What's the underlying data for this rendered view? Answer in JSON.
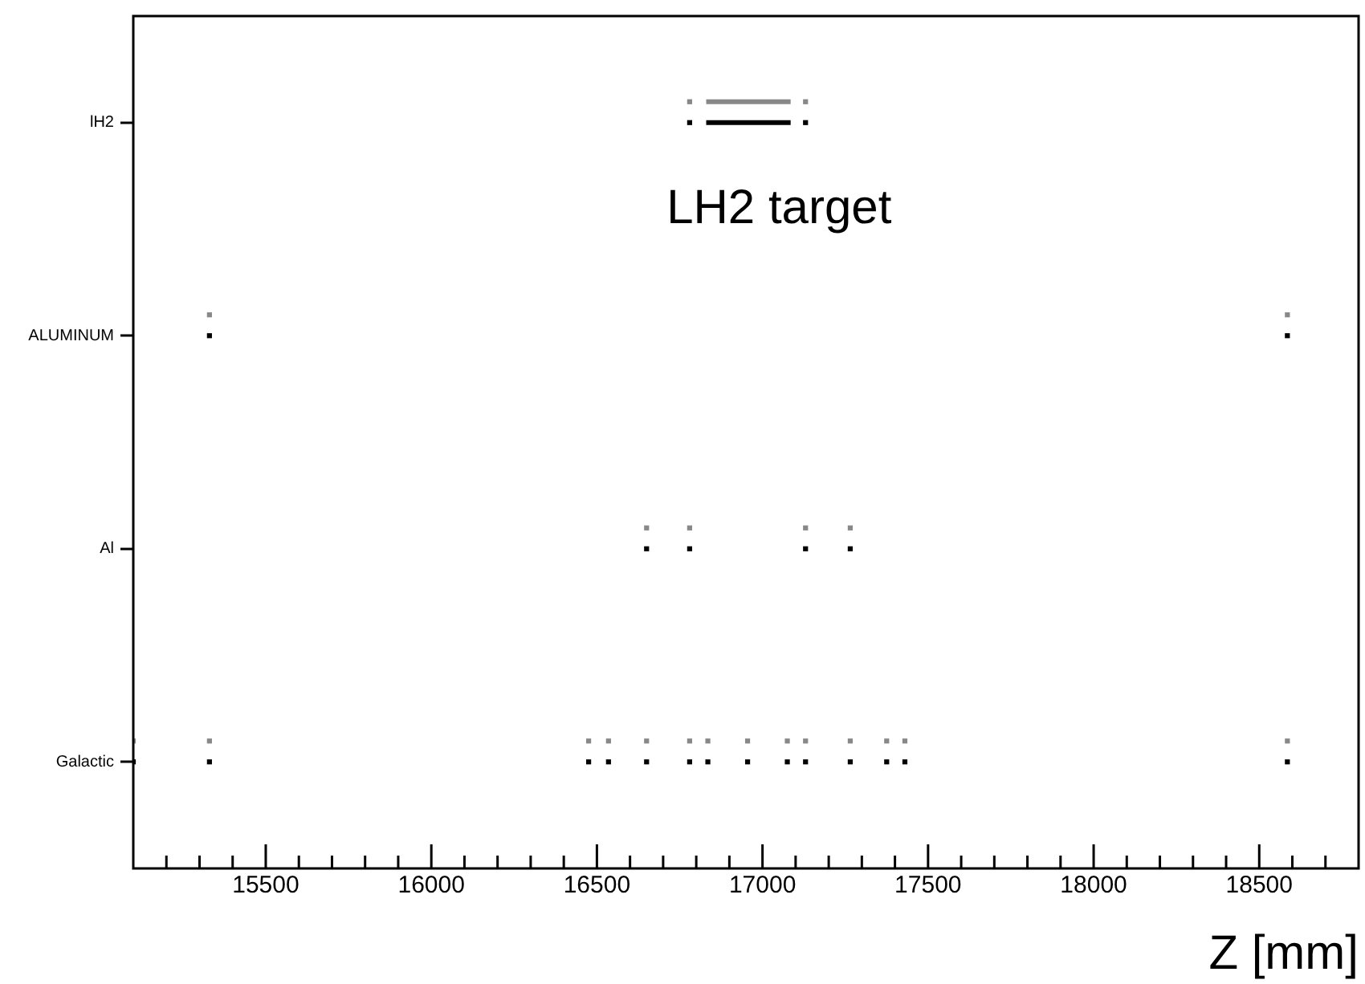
{
  "chart_data": {
    "type": "scatter",
    "xlabel": "Z [mm]",
    "orientation": "horizontal",
    "annotations": [
      "LH2 target"
    ],
    "categories": [
      "lH2",
      "ALUMINUM",
      "Al",
      "Galactic"
    ],
    "xlim": [
      15100,
      18800
    ],
    "xticks": [
      {
        "value": 15200,
        "label": null
      },
      {
        "value": 15300,
        "label": null
      },
      {
        "value": 15400,
        "label": null
      },
      15500,
      {
        "value": 15600,
        "label": null
      },
      {
        "value": 15700,
        "label": null
      },
      {
        "value": 15800,
        "label": null
      },
      {
        "value": 15900,
        "label": null
      },
      16000,
      {
        "value": 16100,
        "label": null
      },
      {
        "value": 16200,
        "label": null
      },
      {
        "value": 16300,
        "label": null
      },
      {
        "value": 16400,
        "label": null
      },
      16500,
      {
        "value": 16600,
        "label": null
      },
      {
        "value": 16700,
        "label": null
      },
      {
        "value": 16800,
        "label": null
      },
      {
        "value": 16900,
        "label": null
      },
      17000,
      {
        "value": 17100,
        "label": null
      },
      {
        "value": 17200,
        "label": null
      },
      {
        "value": 17300,
        "label": null
      },
      {
        "value": 17400,
        "label": null
      },
      17500,
      {
        "value": 17600,
        "label": null
      },
      {
        "value": 17700,
        "label": null
      },
      {
        "value": 17800,
        "label": null
      },
      {
        "value": 17900,
        "label": null
      },
      18000,
      {
        "value": 18100,
        "label": null
      },
      {
        "value": 18200,
        "label": null
      },
      {
        "value": 18300,
        "label": null
      },
      {
        "value": 18400,
        "label": null
      },
      18500,
      {
        "value": 18600,
        "label": null
      },
      {
        "value": 18700,
        "label": null
      }
    ],
    "grid": false,
    "legend": false,
    "marker": "square",
    "series": [
      {
        "color": "#000000",
        "x": [
          "Galactic",
          "Galactic",
          "Galactic",
          "Galactic",
          "Galactic",
          "Galactic",
          "Galactic",
          "Galactic",
          "Galactic",
          "Galactic",
          "Galactic",
          "Galactic",
          "Galactic",
          "Galactic",
          "Al",
          "Al",
          "Al",
          "Al",
          "ALUMINUM",
          "ALUMINUM",
          "lH2",
          "lH2"
        ],
        "values": [
          15100,
          15330,
          16475,
          16535,
          16650,
          16780,
          16835,
          16955,
          17075,
          17130,
          17265,
          17375,
          17430,
          18585,
          16650,
          16780,
          17130,
          17265,
          15330,
          18585,
          16780,
          17130
        ]
      },
      {
        "color": "#888888",
        "x": [
          "Galactic",
          "Galactic",
          "Galactic",
          "Galactic",
          "Galactic",
          "Galactic",
          "Galactic",
          "Galactic",
          "Galactic",
          "Galactic",
          "Galactic",
          "Galactic",
          "Galactic",
          "Galactic",
          "Al",
          "Al",
          "Al",
          "Al",
          "ALUMINUM",
          "ALUMINUM",
          "lH2",
          "lH2"
        ],
        "values": [
          15100,
          15330,
          16475,
          16535,
          16650,
          16780,
          16835,
          16955,
          17075,
          17130,
          17265,
          17375,
          17430,
          18585,
          16650,
          16780,
          17130,
          17265,
          15330,
          18585,
          16780,
          17130
        ]
      },
      {
        "type": "line",
        "color": "#000000",
        "marker": "none",
        "x": [
          "lH2",
          "lH2"
        ],
        "values": [
          16830,
          17085
        ]
      },
      {
        "type": "line",
        "color": "#888888",
        "marker": "none",
        "x": [
          "lH2",
          "lH2"
        ],
        "values": [
          16830,
          17085
        ]
      }
    ]
  }
}
